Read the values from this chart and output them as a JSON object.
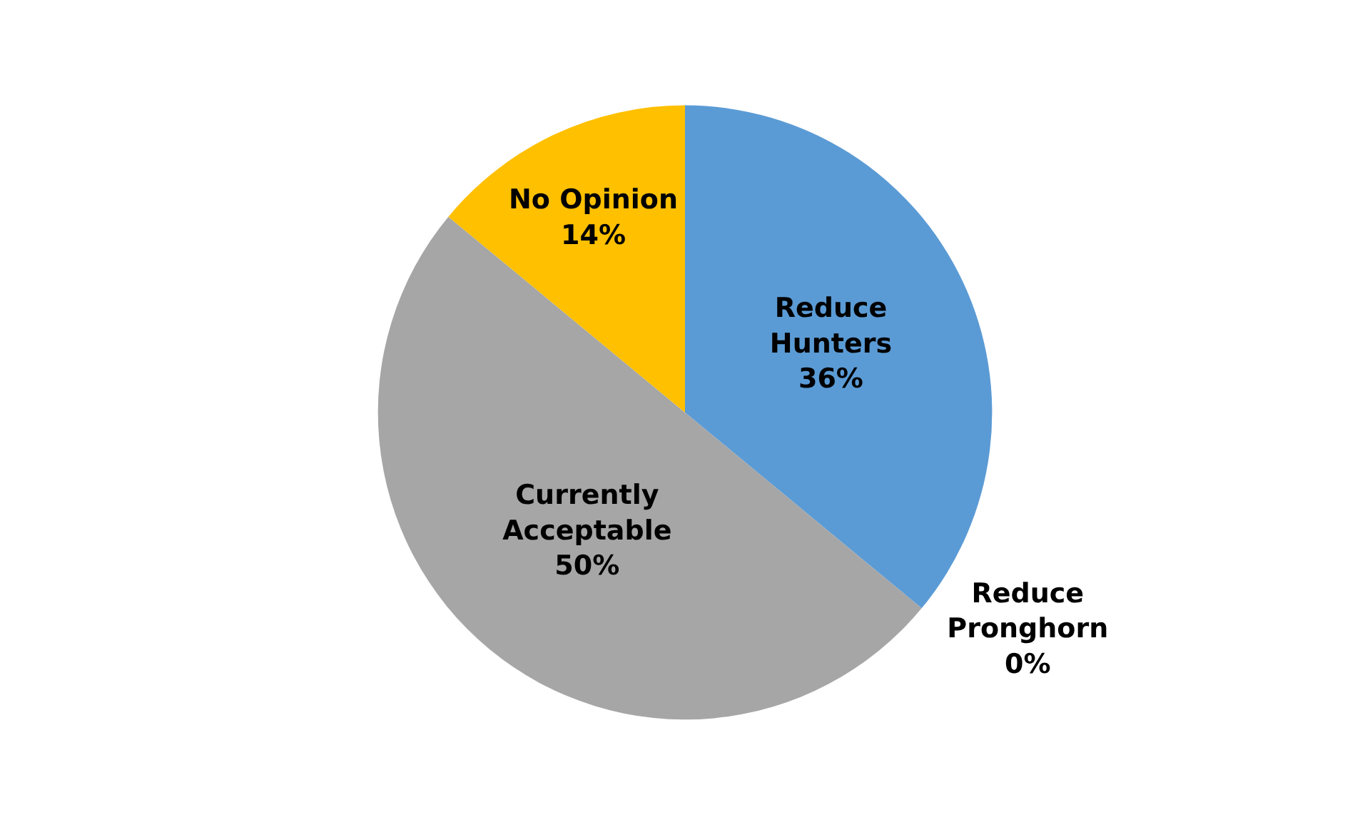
{
  "chart_data": {
    "type": "pie",
    "categories": [
      "Reduce\nHunters",
      "Reduce\nPronghorn",
      "Currently\nAcceptable",
      "No Opinion"
    ],
    "values": [
      36,
      0,
      50,
      14
    ],
    "value_labels": [
      "36%",
      "0%",
      "50%",
      "14%"
    ],
    "colors": [
      "#5b9bd5",
      "#5b9bd5",
      "#a6a6a6",
      "#ffc000"
    ],
    "legend": false
  }
}
